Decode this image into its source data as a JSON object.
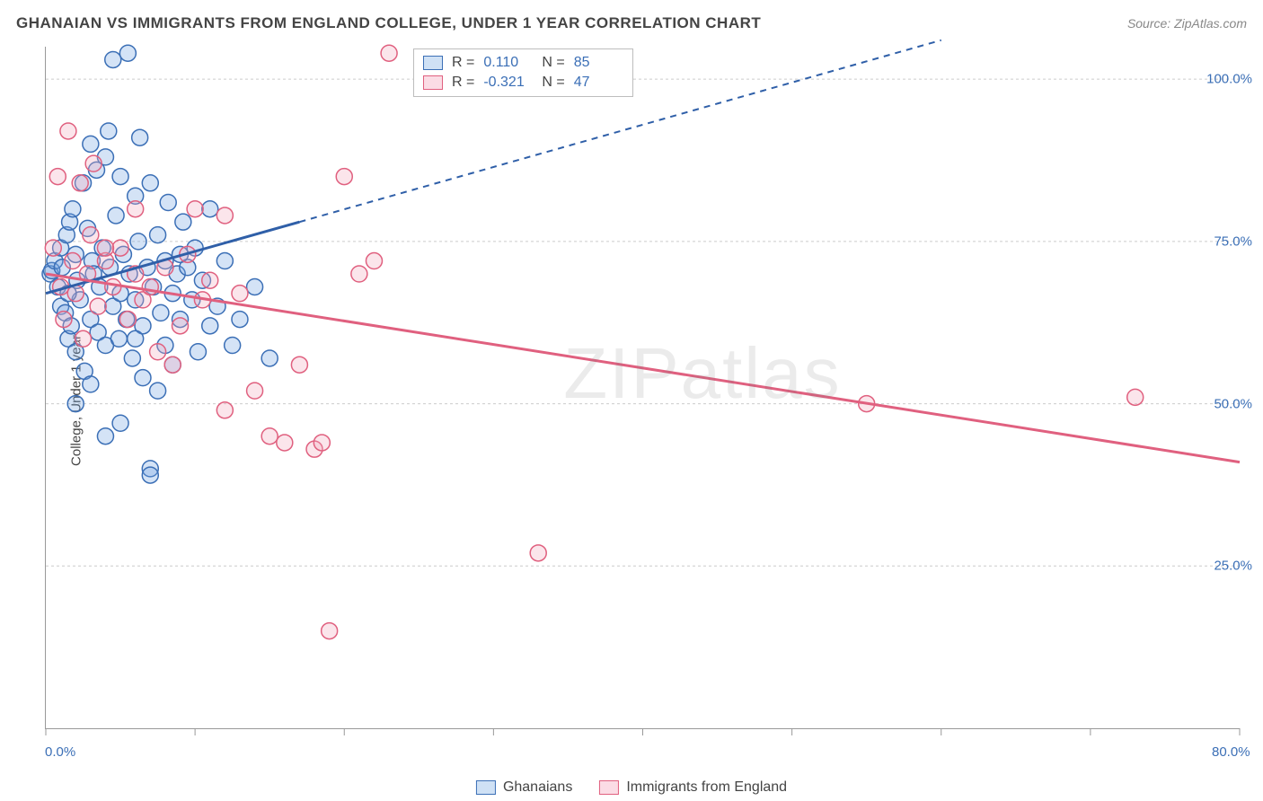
{
  "title": "GHANAIAN VS IMMIGRANTS FROM ENGLAND COLLEGE, UNDER 1 YEAR CORRELATION CHART",
  "source": "Source: ZipAtlas.com",
  "y_axis_label": "College, Under 1 year",
  "watermark": "ZIPatlas",
  "chart": {
    "type": "scatter",
    "xlim": [
      0,
      80
    ],
    "ylim": [
      0,
      105
    ],
    "x_ticks": [
      0,
      10,
      20,
      30,
      40,
      50,
      60,
      70,
      80
    ],
    "x_tick_labels": {
      "0": "0.0%",
      "80": "80.0%"
    },
    "y_ticks": [
      25,
      50,
      75,
      100
    ],
    "y_tick_labels": {
      "25": "25.0%",
      "50": "50.0%",
      "75": "75.0%",
      "100": "100.0%"
    },
    "background_color": "#ffffff",
    "grid_color": "#cccccc",
    "axis_color": "#999999",
    "tick_label_color": "#3b6fb6",
    "marker_radius": 9,
    "marker_fill_opacity": 0.3,
    "marker_stroke_width": 1.5,
    "series": [
      {
        "name": "Ghanaians",
        "color": "#6fa3e0",
        "stroke": "#3b6fb6",
        "R": "0.110",
        "N": "85",
        "trend": {
          "x1": 0,
          "y1": 67,
          "x2": 17,
          "y2": 78,
          "extend_x2": 60,
          "extend_y2": 106,
          "solid_color": "#2f5fa8",
          "width": 3
        },
        "points": [
          [
            0.3,
            70
          ],
          [
            0.4,
            70.5
          ],
          [
            0.6,
            72
          ],
          [
            0.8,
            68
          ],
          [
            1.0,
            65
          ],
          [
            1.0,
            74
          ],
          [
            1.1,
            71
          ],
          [
            1.3,
            64
          ],
          [
            1.4,
            76
          ],
          [
            1.5,
            60
          ],
          [
            1.6,
            78
          ],
          [
            1.7,
            62
          ],
          [
            1.8,
            80
          ],
          [
            2.0,
            58
          ],
          [
            2.0,
            73
          ],
          [
            2.1,
            69
          ],
          [
            2.3,
            66
          ],
          [
            2.5,
            84
          ],
          [
            2.6,
            55
          ],
          [
            2.8,
            77
          ],
          [
            3.0,
            63
          ],
          [
            3.0,
            90
          ],
          [
            3.1,
            72
          ],
          [
            3.2,
            70
          ],
          [
            3.4,
            86
          ],
          [
            3.5,
            61
          ],
          [
            3.6,
            68
          ],
          [
            3.8,
            74
          ],
          [
            4.0,
            88
          ],
          [
            4.0,
            59
          ],
          [
            4.2,
            92
          ],
          [
            4.3,
            71
          ],
          [
            4.5,
            65
          ],
          [
            4.5,
            103
          ],
          [
            4.7,
            79
          ],
          [
            4.9,
            60
          ],
          [
            5.0,
            67
          ],
          [
            5.0,
            85
          ],
          [
            5.2,
            73
          ],
          [
            5.4,
            63
          ],
          [
            5.5,
            104
          ],
          [
            5.6,
            70
          ],
          [
            5.8,
            57
          ],
          [
            6.0,
            82
          ],
          [
            6.0,
            66
          ],
          [
            6.2,
            75
          ],
          [
            6.3,
            91
          ],
          [
            6.5,
            62
          ],
          [
            6.8,
            71
          ],
          [
            7.0,
            84
          ],
          [
            7.0,
            40
          ],
          [
            7.0,
            39
          ],
          [
            7.2,
            68
          ],
          [
            7.5,
            76
          ],
          [
            7.7,
            64
          ],
          [
            8.0,
            72
          ],
          [
            8.0,
            59
          ],
          [
            8.2,
            81
          ],
          [
            8.5,
            67
          ],
          [
            8.8,
            70
          ],
          [
            9.0,
            63
          ],
          [
            9.2,
            78
          ],
          [
            9.5,
            71
          ],
          [
            9.8,
            66
          ],
          [
            10.0,
            74
          ],
          [
            10.2,
            58
          ],
          [
            10.5,
            69
          ],
          [
            11.0,
            80
          ],
          [
            11.5,
            65
          ],
          [
            12.0,
            72
          ],
          [
            5.0,
            47
          ],
          [
            4.0,
            45
          ],
          [
            3.0,
            53
          ],
          [
            6.5,
            54
          ],
          [
            7.5,
            52
          ],
          [
            2.0,
            50
          ],
          [
            1.5,
            67
          ],
          [
            6.0,
            60
          ],
          [
            8.5,
            56
          ],
          [
            13.0,
            63
          ],
          [
            14.0,
            68
          ],
          [
            15.0,
            57
          ],
          [
            9.0,
            73
          ],
          [
            11.0,
            62
          ],
          [
            12.5,
            59
          ]
        ]
      },
      {
        "name": "Immigrants from England",
        "color": "#f2a9bd",
        "stroke": "#e0607f",
        "R": "-0.321",
        "N": "47",
        "trend": {
          "x1": 0,
          "y1": 70,
          "x2": 80,
          "y2": 41,
          "solid_color": "#e0607f",
          "width": 3
        },
        "points": [
          [
            0.5,
            74
          ],
          [
            0.8,
            85
          ],
          [
            1.0,
            68
          ],
          [
            1.2,
            63
          ],
          [
            1.5,
            92
          ],
          [
            1.8,
            72
          ],
          [
            2.0,
            67
          ],
          [
            2.3,
            84
          ],
          [
            2.5,
            60
          ],
          [
            2.8,
            70
          ],
          [
            3.0,
            76
          ],
          [
            3.5,
            65
          ],
          [
            4.0,
            72
          ],
          [
            4.5,
            68
          ],
          [
            5.0,
            74
          ],
          [
            5.5,
            63
          ],
          [
            6.0,
            70
          ],
          [
            6.5,
            66
          ],
          [
            7.0,
            68
          ],
          [
            8.0,
            71
          ],
          [
            8.5,
            56
          ],
          [
            9.0,
            62
          ],
          [
            10.0,
            80
          ],
          [
            11.0,
            69
          ],
          [
            12.0,
            79
          ],
          [
            13.0,
            67
          ],
          [
            14.0,
            52
          ],
          [
            15.0,
            45
          ],
          [
            16.0,
            44
          ],
          [
            17.0,
            56
          ],
          [
            18.0,
            43
          ],
          [
            20.0,
            85
          ],
          [
            22.0,
            72
          ],
          [
            23.0,
            104
          ],
          [
            21.0,
            70
          ],
          [
            19.0,
            15
          ],
          [
            18.5,
            44
          ],
          [
            33.0,
            27
          ],
          [
            55.0,
            50
          ],
          [
            73.0,
            51
          ],
          [
            4.0,
            74
          ],
          [
            6.0,
            80
          ],
          [
            7.5,
            58
          ],
          [
            12.0,
            49
          ],
          [
            9.5,
            73
          ],
          [
            10.5,
            66
          ],
          [
            3.2,
            87
          ]
        ]
      }
    ]
  },
  "stats_box": {
    "rows": [
      {
        "swatch_fill": "#cfe1f5",
        "swatch_stroke": "#3b6fb6",
        "R_label": "R =",
        "R": "0.110",
        "N_label": "N =",
        "N": "85"
      },
      {
        "swatch_fill": "#fbdce5",
        "swatch_stroke": "#e0607f",
        "R_label": "R =",
        "R": "-0.321",
        "N_label": "N =",
        "N": "47"
      }
    ]
  },
  "legend": {
    "items": [
      {
        "swatch_fill": "#cfe1f5",
        "swatch_stroke": "#3b6fb6",
        "label": "Ghanaians"
      },
      {
        "swatch_fill": "#fbdce5",
        "swatch_stroke": "#e0607f",
        "label": "Immigrants from England"
      }
    ]
  }
}
